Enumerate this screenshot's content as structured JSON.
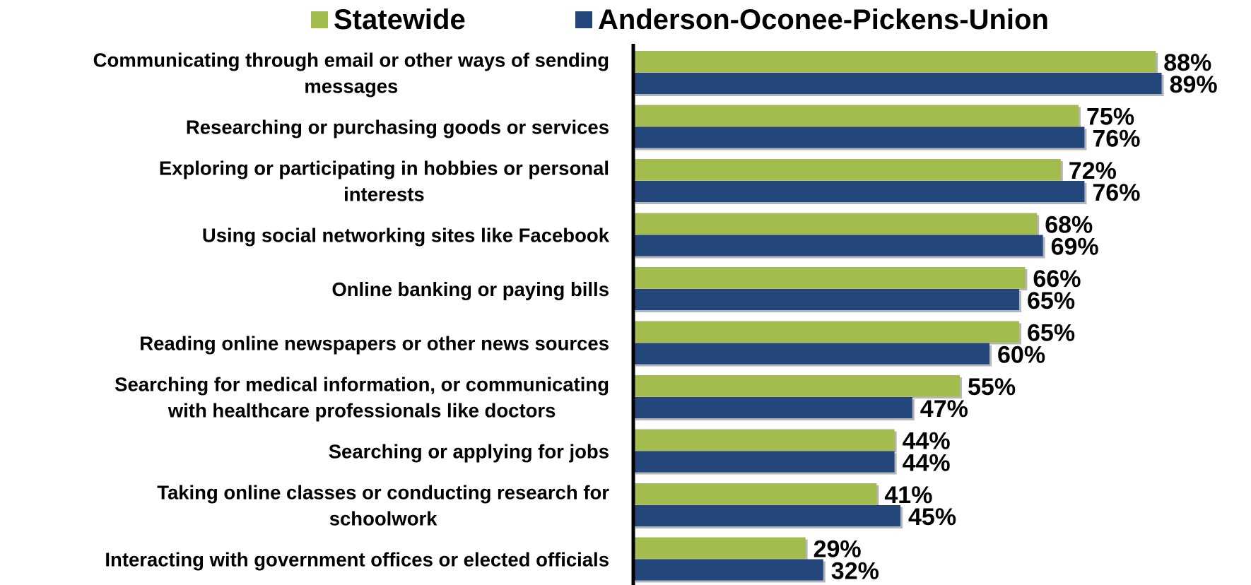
{
  "chart_data": {
    "type": "bar",
    "orientation": "horizontal",
    "categories": [
      [
        "Communicating through email or other ways of sending",
        "messages"
      ],
      [
        "Researching or purchasing goods or services"
      ],
      [
        "Exploring or participating in hobbies or personal",
        "interests"
      ],
      [
        "Using social networking sites like Facebook"
      ],
      [
        "Online banking or paying bills"
      ],
      [
        "Reading online newspapers or other news sources"
      ],
      [
        "Searching for medical information, or communicating",
        "with healthcare professionals like doctors"
      ],
      [
        "Searching or applying for jobs"
      ],
      [
        "Taking online classes or conducting research for",
        "schoolwork"
      ],
      [
        "Interacting with government offices or elected officials"
      ]
    ],
    "series": [
      {
        "name": "Statewide",
        "color": "#A2BD4D",
        "values": [
          88,
          75,
          72,
          68,
          66,
          65,
          55,
          44,
          41,
          29
        ],
        "labels": [
          "88%",
          "75%",
          "72%",
          "68%",
          "66%",
          "65%",
          "55%",
          "44%",
          "41%",
          "29%"
        ]
      },
      {
        "name": "Anderson-Oconee-Pickens-Union",
        "color": "#24477B",
        "values": [
          89,
          76,
          76,
          69,
          65,
          60,
          47,
          44,
          45,
          32
        ],
        "labels": [
          "89%",
          "76%",
          "76%",
          "69%",
          "65%",
          "60%",
          "47%",
          "44%",
          "45%",
          "32%"
        ]
      }
    ],
    "xlim": [
      0,
      100
    ],
    "grid": false,
    "legend": "top"
  }
}
